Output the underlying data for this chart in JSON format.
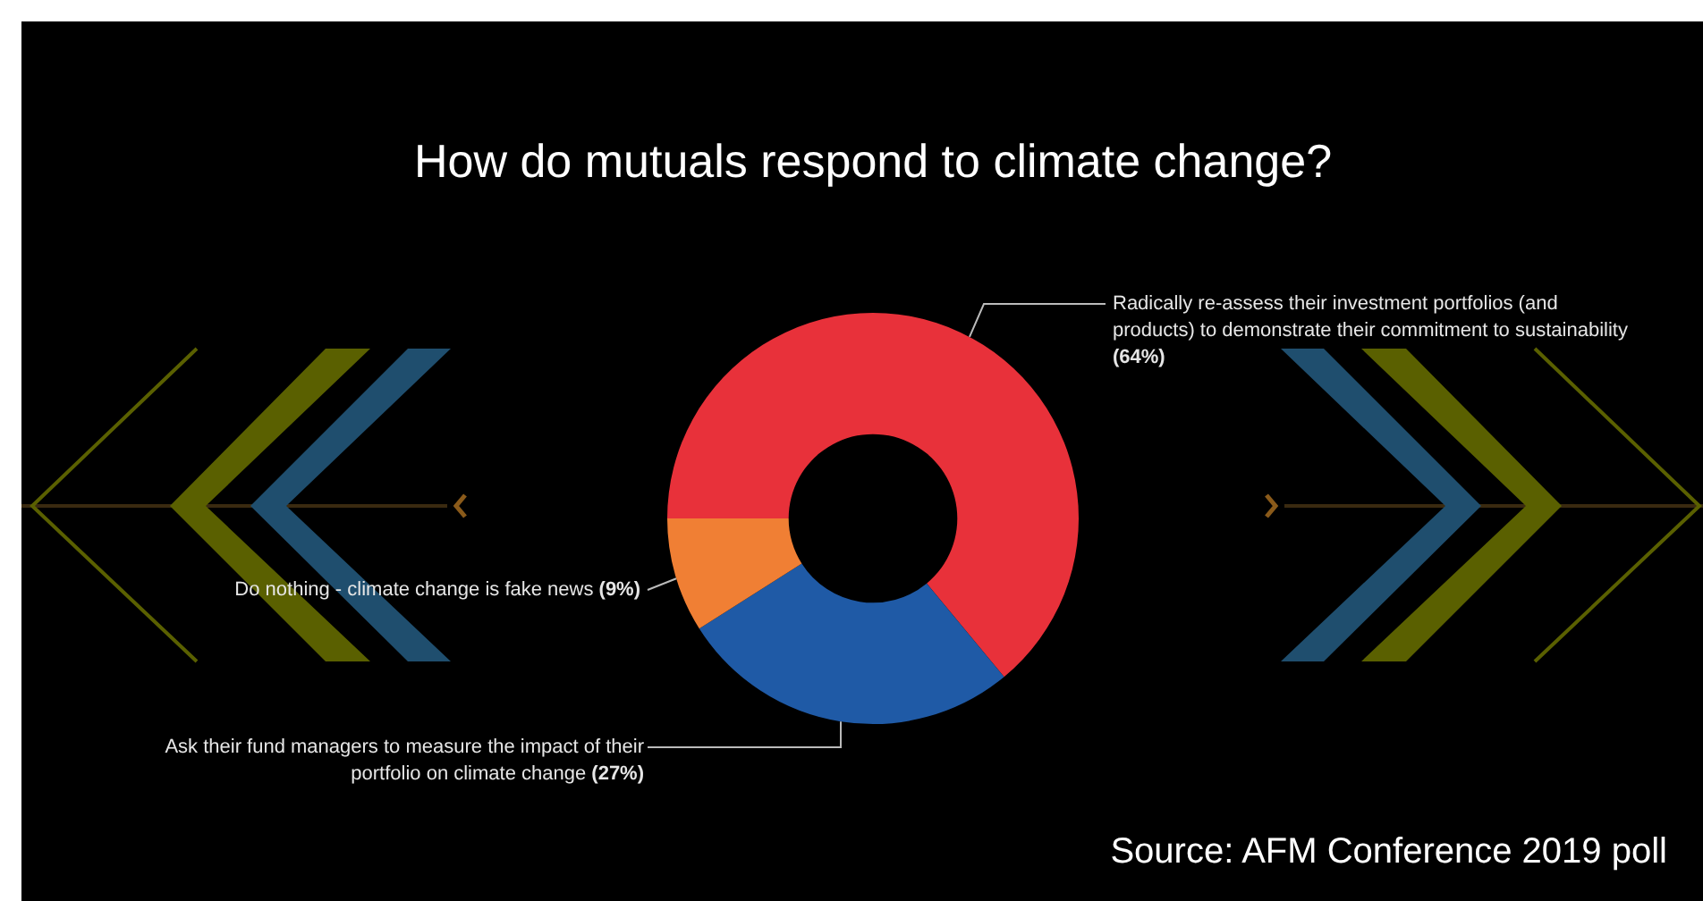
{
  "chart_data": {
    "type": "donut",
    "title": "How do mutuals respond to climate change?",
    "categories": [
      "Radically re-assess their investment portfolios (and products) to demonstrate their commitment to sustainability",
      "Ask their fund managers to measure the impact of their portfolio on climate change",
      "Do nothing - climate change is fake news"
    ],
    "values": [
      64,
      27,
      9
    ],
    "value_labels": [
      "(64%)",
      "(27%)",
      "(9%)"
    ],
    "colors": [
      "#e8313a",
      "#1f5aa6",
      "#f07f34"
    ],
    "legend": false,
    "annotations": [
      "Source: AFM Conference 2019 poll"
    ]
  }
}
